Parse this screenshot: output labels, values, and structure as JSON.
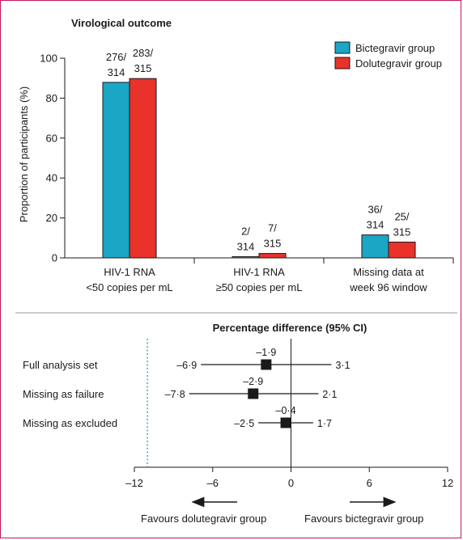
{
  "colors": {
    "series_bictegravir": "#1aa6c4",
    "series_dolutegravir": "#e8322a",
    "frame": "#c2185b",
    "dotted_line": "#2a8ca8"
  },
  "chart_data": [
    {
      "type": "bar",
      "title": "Virological outcome",
      "ylabel": "Proportion of participants (%)",
      "ylim": [
        0,
        100
      ],
      "yticks": [
        "0",
        "20",
        "40",
        "60",
        "80",
        "100"
      ],
      "categories": [
        [
          "HIV-1 RNA",
          "<50 copies per mL"
        ],
        [
          "HIV-1 RNA",
          "≥50 copies per mL"
        ],
        [
          "Missing data at",
          "week 96 window"
        ]
      ],
      "series": [
        {
          "name": "Bictegravir group",
          "values": [
            87.9,
            0.6,
            11.5
          ],
          "labels": [
            [
              "276/",
              "314"
            ],
            [
              "2/",
              "314"
            ],
            [
              "36/",
              "314"
            ]
          ]
        },
        {
          "name": "Dolutegravir group",
          "values": [
            89.8,
            2.2,
            7.9
          ],
          "labels": [
            [
              "283/",
              "315"
            ],
            [
              "7/",
              "315"
            ],
            [
              "25/",
              "315"
            ]
          ]
        }
      ],
      "legend": "top-right"
    },
    {
      "type": "forest",
      "title": "Percentage difference (95% CI)",
      "xlim": [
        -12,
        12
      ],
      "xticks": [
        "–12",
        "–6",
        "0",
        "6",
        "12"
      ],
      "reference_line": -11,
      "rows": [
        {
          "label": "Full analysis set",
          "estimate": -1.9,
          "lower": -6.9,
          "upper": 3.1,
          "estimate_label": "–1·9",
          "lower_label": "–6·9",
          "upper_label": "3·1"
        },
        {
          "label": "Missing as failure",
          "estimate": -2.9,
          "lower": -7.8,
          "upper": 2.1,
          "estimate_label": "–2·9",
          "lower_label": "–7·8",
          "upper_label": "2·1"
        },
        {
          "label": "Missing  as excluded",
          "estimate": -0.4,
          "lower": -2.5,
          "upper": 1.7,
          "estimate_label": "–0·4",
          "lower_label": "–2·5",
          "upper_label": "1·7"
        }
      ],
      "favours_left": "Favours dolutegravir group",
      "favours_right": "Favours bictegravir group"
    }
  ]
}
